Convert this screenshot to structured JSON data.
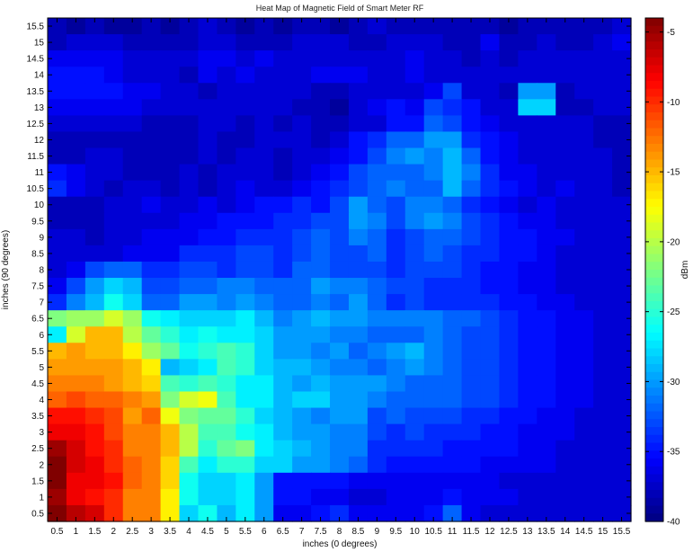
{
  "chart_data": {
    "type": "heatmap",
    "title": "Heat Map of Magnetic Field of Smart Meter RF",
    "xlabel": "inches (0 degrees)",
    "ylabel": "inches (90 degrees)",
    "colorbar_label": "dBm",
    "colormap": "jet",
    "value_range": [
      -40,
      -4
    ],
    "colorbar_ticks": [
      -5,
      -10,
      -15,
      -20,
      -25,
      -30,
      -35,
      -40
    ],
    "x_ticks": [
      "0.5",
      "1",
      "1.5",
      "2",
      "2.5",
      "3",
      "3.5",
      "4",
      "4.5",
      "5",
      "5.5",
      "6",
      "6.5",
      "7",
      "7.5",
      "8",
      "8.5",
      "9",
      "9.5",
      "10",
      "10.5",
      "11",
      "11.5",
      "12",
      "12.5",
      "13",
      "13.5",
      "14",
      "14.5",
      "15",
      "15.5"
    ],
    "y_ticks": [
      "0.5",
      "1",
      "1.5",
      "2",
      "2.5",
      "3",
      "3.5",
      "4",
      "4.5",
      "5",
      "5.5",
      "6",
      "6.5",
      "7",
      "7.5",
      "8",
      "8.5",
      "9",
      "9.5",
      "10",
      "10.5",
      "11",
      "11.5",
      "12",
      "12.5",
      "13",
      "13.5",
      "14",
      "14.5",
      "15",
      "15.5"
    ],
    "x": [
      0.5,
      1,
      1.5,
      2,
      2.5,
      3,
      3.5,
      4,
      4.5,
      5,
      5.5,
      6,
      6.5,
      7,
      7.5,
      8,
      8.5,
      9,
      9.5,
      10,
      10.5,
      11,
      11.5,
      12,
      12.5,
      13,
      13.5,
      14,
      14.5,
      15,
      15.5
    ],
    "y": [
      15.5,
      15,
      14.5,
      14,
      13.5,
      13,
      12.5,
      12,
      11.5,
      11,
      10.5,
      10,
      9.5,
      9,
      8.5,
      8,
      7.5,
      7,
      6.5,
      6,
      5.5,
      5,
      4.5,
      4,
      3.5,
      3,
      2.5,
      2,
      1.5,
      1,
      0.5
    ],
    "z": [
      [
        -38,
        -39,
        -38,
        -39,
        -39,
        -38,
        -39,
        -38,
        -37,
        -38,
        -39,
        -38,
        -39,
        -38,
        -38,
        -39,
        -38,
        -37,
        -38,
        -38,
        -38,
        -38,
        -38,
        -38,
        -39,
        -38,
        -38,
        -38,
        -38,
        -38,
        -37
      ],
      [
        -38,
        -37,
        -37,
        -37,
        -38,
        -38,
        -38,
        -38,
        -37,
        -37,
        -38,
        -38,
        -38,
        -37,
        -37,
        -37,
        -38,
        -38,
        -37,
        -37,
        -37,
        -38,
        -38,
        -36,
        -38,
        -38,
        -37,
        -38,
        -38,
        -37,
        -36
      ],
      [
        -36,
        -36,
        -36,
        -36,
        -37,
        -37,
        -37,
        -37,
        -36,
        -36,
        -37,
        -36,
        -37,
        -37,
        -37,
        -37,
        -37,
        -37,
        -37,
        -36,
        -37,
        -37,
        -38,
        -37,
        -38,
        -37,
        -37,
        -37,
        -37,
        -37,
        -37
      ],
      [
        -35,
        -35,
        -35,
        -36,
        -37,
        -37,
        -37,
        -38,
        -36,
        -37,
        -36,
        -37,
        -37,
        -37,
        -36,
        -36,
        -36,
        -37,
        -37,
        -36,
        -37,
        -37,
        -37,
        -37,
        -37,
        -37,
        -37,
        -37,
        -37,
        -37,
        -37
      ],
      [
        -35,
        -35,
        -35,
        -35,
        -36,
        -36,
        -37,
        -37,
        -38,
        -37,
        -37,
        -37,
        -37,
        -37,
        -38,
        -38,
        -37,
        -37,
        -37,
        -37,
        -36,
        -33,
        -37,
        -37,
        -38,
        -30,
        -30,
        -38,
        -37,
        -37,
        -37
      ],
      [
        -36,
        -36,
        -36,
        -36,
        -36,
        -37,
        -37,
        -37,
        -37,
        -37,
        -37,
        -37,
        -37,
        -38,
        -38,
        -39,
        -37,
        -36,
        -35,
        -36,
        -33,
        -34,
        -35,
        -37,
        -37,
        -28,
        -28,
        -38,
        -38,
        -37,
        -37
      ],
      [
        -37,
        -37,
        -37,
        -37,
        -37,
        -38,
        -38,
        -38,
        -37,
        -37,
        -38,
        -37,
        -38,
        -37,
        -38,
        -38,
        -37,
        -37,
        -35,
        -35,
        -32,
        -33,
        -35,
        -36,
        -37,
        -37,
        -37,
        -37,
        -37,
        -38,
        -38
      ],
      [
        -38,
        -38,
        -38,
        -38,
        -38,
        -38,
        -38,
        -38,
        -37,
        -38,
        -38,
        -37,
        -37,
        -37,
        -38,
        -37,
        -35,
        -34,
        -32,
        -32,
        -30,
        -30,
        -34,
        -35,
        -36,
        -37,
        -37,
        -37,
        -37,
        -38,
        -38
      ],
      [
        -38,
        -38,
        -37,
        -37,
        -38,
        -38,
        -38,
        -38,
        -37,
        -38,
        -37,
        -37,
        -38,
        -37,
        -37,
        -36,
        -35,
        -33,
        -31,
        -30,
        -31,
        -29,
        -32,
        -35,
        -36,
        -37,
        -37,
        -37,
        -37,
        -37,
        -38
      ],
      [
        -35,
        -36,
        -37,
        -37,
        -38,
        -38,
        -38,
        -37,
        -38,
        -37,
        -37,
        -37,
        -38,
        -37,
        -36,
        -35,
        -33,
        -32,
        -32,
        -32,
        -31,
        -29,
        -31,
        -34,
        -36,
        -36,
        -37,
        -37,
        -37,
        -37,
        -38
      ],
      [
        -34,
        -36,
        -37,
        -38,
        -37,
        -37,
        -38,
        -37,
        -38,
        -37,
        -36,
        -37,
        -37,
        -36,
        -35,
        -34,
        -33,
        -32,
        -31,
        -32,
        -32,
        -29,
        -32,
        -34,
        -35,
        -36,
        -37,
        -36,
        -37,
        -37,
        -38
      ],
      [
        -38,
        -38,
        -38,
        -37,
        -37,
        -36,
        -37,
        -37,
        -36,
        -37,
        -36,
        -35,
        -35,
        -34,
        -35,
        -33,
        -30,
        -32,
        -33,
        -31,
        -31,
        -32,
        -34,
        -35,
        -36,
        -37,
        -36,
        -37,
        -37,
        -37,
        -37
      ],
      [
        -38,
        -38,
        -38,
        -37,
        -37,
        -37,
        -37,
        -36,
        -36,
        -35,
        -35,
        -35,
        -34,
        -34,
        -33,
        -33,
        -30,
        -31,
        -33,
        -31,
        -30,
        -31,
        -33,
        -34,
        -35,
        -36,
        -36,
        -37,
        -37,
        -37,
        -37
      ],
      [
        -37,
        -37,
        -38,
        -37,
        -37,
        -36,
        -36,
        -36,
        -35,
        -35,
        -34,
        -34,
        -34,
        -33,
        -32,
        -33,
        -31,
        -32,
        -34,
        -33,
        -32,
        -32,
        -33,
        -34,
        -35,
        -35,
        -36,
        -36,
        -37,
        -37,
        -37
      ],
      [
        -37,
        -37,
        -37,
        -37,
        -36,
        -36,
        -36,
        -34,
        -34,
        -34,
        -33,
        -33,
        -34,
        -33,
        -32,
        -33,
        -33,
        -32,
        -34,
        -33,
        -32,
        -33,
        -34,
        -34,
        -35,
        -35,
        -36,
        -37,
        -37,
        -37,
        -37
      ],
      [
        -37,
        -36,
        -33,
        -32,
        -32,
        -34,
        -34,
        -33,
        -33,
        -34,
        -33,
        -33,
        -34,
        -32,
        -32,
        -33,
        -33,
        -33,
        -34,
        -33,
        -33,
        -33,
        -34,
        -35,
        -35,
        -36,
        -36,
        -37,
        -37,
        -37,
        -37
      ],
      [
        -36,
        -33,
        -30,
        -28,
        -29,
        -33,
        -33,
        -32,
        -32,
        -31,
        -31,
        -32,
        -32,
        -32,
        -30,
        -31,
        -31,
        -32,
        -33,
        -33,
        -34,
        -34,
        -34,
        -35,
        -35,
        -36,
        -36,
        -37,
        -37,
        -37,
        -37
      ],
      [
        -34,
        -31,
        -29,
        -26,
        -28,
        -32,
        -32,
        -30,
        -30,
        -31,
        -30,
        -31,
        -32,
        -32,
        -31,
        -32,
        -30,
        -32,
        -34,
        -33,
        -34,
        -34,
        -34,
        -34,
        -35,
        -35,
        -36,
        -36,
        -37,
        -37,
        -37
      ],
      [
        -22,
        -21,
        -21,
        -19,
        -21,
        -26,
        -27,
        -28,
        -28,
        -28,
        -27,
        -29,
        -31,
        -30,
        -29,
        -30,
        -30,
        -31,
        -31,
        -31,
        -31,
        -32,
        -32,
        -33,
        -34,
        -35,
        -35,
        -36,
        -36,
        -37,
        -37
      ],
      [
        -27,
        -19,
        -15,
        -15,
        -20,
        -23,
        -25,
        -27,
        -26,
        -27,
        -27,
        -28,
        -30,
        -30,
        -30,
        -31,
        -31,
        -32,
        -32,
        -32,
        -31,
        -32,
        -33,
        -33,
        -34,
        -35,
        -35,
        -36,
        -36,
        -37,
        -37
      ],
      [
        -15,
        -14,
        -15,
        -15,
        -17,
        -21,
        -23,
        -26,
        -25,
        -24,
        -25,
        -28,
        -30,
        -30,
        -31,
        -30,
        -32,
        -31,
        -30,
        -29,
        -31,
        -32,
        -33,
        -33,
        -34,
        -35,
        -35,
        -36,
        -36,
        -37,
        -37
      ],
      [
        -14,
        -14,
        -14,
        -14,
        -15,
        -17,
        -29,
        -28,
        -27,
        -24,
        -25,
        -28,
        -29,
        -29,
        -30,
        -31,
        -31,
        -32,
        -31,
        -30,
        -31,
        -32,
        -33,
        -33,
        -34,
        -35,
        -35,
        -36,
        -36,
        -37,
        -37
      ],
      [
        -13,
        -13,
        -13,
        -14,
        -15,
        -16,
        -24,
        -25,
        -24,
        -25,
        -27,
        -27,
        -29,
        -30,
        -29,
        -30,
        -30,
        -30,
        -31,
        -32,
        -32,
        -32,
        -33,
        -33,
        -34,
        -35,
        -35,
        -36,
        -36,
        -37,
        -37
      ],
      [
        -12,
        -11,
        -12,
        -12,
        -13,
        -14,
        -22,
        -19,
        -18,
        -24,
        -27,
        -27,
        -29,
        -28,
        -28,
        -30,
        -30,
        -31,
        -32,
        -32,
        -32,
        -32,
        -33,
        -33,
        -34,
        -35,
        -35,
        -36,
        -36,
        -37,
        -37
      ],
      [
        -9,
        -9,
        -10,
        -11,
        -14,
        -12,
        -18,
        -22,
        -23,
        -23,
        -25,
        -28,
        -29,
        -30,
        -31,
        -30,
        -30,
        -33,
        -32,
        -33,
        -33,
        -33,
        -34,
        -34,
        -35,
        -35,
        -36,
        -36,
        -37,
        -37,
        -37
      ],
      [
        -8,
        -8,
        -9,
        -11,
        -13,
        -13,
        -15,
        -20,
        -24,
        -24,
        -26,
        -27,
        -29,
        -30,
        -30,
        -31,
        -31,
        -33,
        -34,
        -33,
        -34,
        -34,
        -34,
        -35,
        -35,
        -36,
        -36,
        -36,
        -37,
        -37,
        -37
      ],
      [
        -5,
        -7,
        -9,
        -10,
        -13,
        -13,
        -15,
        -20,
        -25,
        -23,
        -22,
        -27,
        -28,
        -29,
        -30,
        -31,
        -31,
        -34,
        -34,
        -34,
        -34,
        -35,
        -35,
        -35,
        -35,
        -36,
        -36,
        -37,
        -37,
        -37,
        -37
      ],
      [
        -4,
        -7,
        -8,
        -10,
        -12,
        -13,
        -16,
        -24,
        -27,
        -25,
        -25,
        -28,
        -28,
        -30,
        -30,
        -31,
        -32,
        -34,
        -35,
        -35,
        -35,
        -35,
        -35,
        -36,
        -36,
        -36,
        -36,
        -37,
        -37,
        -37,
        -37
      ],
      [
        -4,
        -8,
        -8,
        -9,
        -12,
        -13,
        -16,
        -26,
        -28,
        -28,
        -27,
        -30,
        -35,
        -35,
        -35,
        -35,
        -36,
        -36,
        -36,
        -36,
        -36,
        -36,
        -36,
        -36,
        -37,
        -37,
        -37,
        -37,
        -37,
        -37,
        -37
      ],
      [
        -5,
        -8,
        -9,
        -10,
        -13,
        -13,
        -17,
        -26,
        -28,
        -28,
        -27,
        -30,
        -35,
        -35,
        -36,
        -36,
        -37,
        -37,
        -36,
        -36,
        -36,
        -35,
        -36,
        -36,
        -36,
        -37,
        -37,
        -37,
        -37,
        -37,
        -37
      ],
      [
        -4,
        -6,
        -7,
        -10,
        -13,
        -13,
        -17,
        -28,
        -26,
        -29,
        -27,
        -30,
        -36,
        -36,
        -35,
        -34,
        -36,
        -36,
        -36,
        -36,
        -35,
        -32,
        -36,
        -37,
        -37,
        -37,
        -37,
        -37,
        -37,
        -37,
        -37
      ]
    ]
  }
}
